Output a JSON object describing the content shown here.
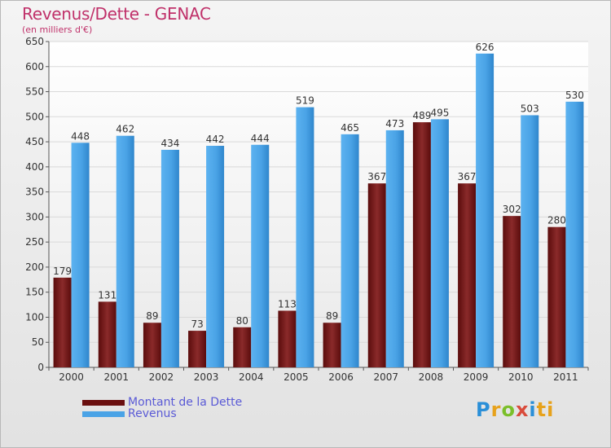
{
  "header": {
    "title": "Revenus/Dette - GENAC",
    "subtitle": "(en milliers d'€)"
  },
  "logo": {
    "text": "Proxiti",
    "letters": [
      "P",
      "r",
      "o",
      "x",
      "i",
      "ti"
    ]
  },
  "colors": {
    "dette": "#7a1a1a",
    "revenus": "#4aa3e6"
  },
  "chart_data": {
    "type": "bar",
    "categories": [
      "2000",
      "2001",
      "2002",
      "2003",
      "2004",
      "2005",
      "2006",
      "2007",
      "2008",
      "2009",
      "2010",
      "2011"
    ],
    "series": [
      {
        "name": "Montant de la Dette",
        "values": [
          179,
          131,
          89,
          73,
          80,
          113,
          89,
          367,
          489,
          367,
          302,
          280
        ]
      },
      {
        "name": "Revenus",
        "values": [
          448,
          462,
          434,
          442,
          444,
          519,
          465,
          473,
          495,
          626,
          503,
          530
        ]
      }
    ],
    "yticks": [
      0,
      50,
      100,
      150,
      200,
      250,
      300,
      350,
      400,
      450,
      500,
      550,
      600,
      650
    ],
    "ylim": [
      0,
      650
    ],
    "grid": true,
    "legend": "bottom-left"
  }
}
